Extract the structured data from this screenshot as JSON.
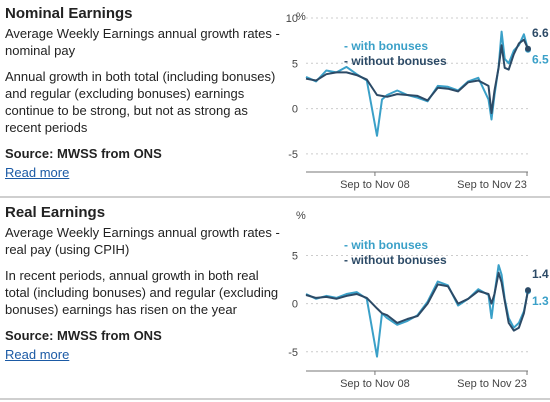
{
  "panels": [
    {
      "title": "Nominal Earnings",
      "subtitle": "Average Weekly Earnings annual growth rates - nominal pay",
      "description": "Annual growth in both total (including bonuses) and regular (excluding bonuses) earnings continue to be strong, but not as strong as recent periods",
      "source": "Source: MWSS from ONS",
      "link": "Read more"
    },
    {
      "title": "Real Earnings",
      "subtitle": "Average Weekly Earnings annual growth rates - real pay (using CPIH)",
      "description": "In recent periods, annual growth in both real total (including bonuses) and regular (excluding bonuses) earnings has risen on the year",
      "source": "Source: MWSS from ONS",
      "link": "Read more"
    }
  ],
  "colors": {
    "with_bonuses": "#3aa0c8",
    "without_bonuses": "#2c4a66",
    "axis": "#777777",
    "grid": "#cccccc",
    "text": "#444444"
  },
  "chart_data": [
    {
      "type": "line",
      "ylabel": "%",
      "ylim": [
        -7,
        10
      ],
      "yticks": [
        "-5",
        "0",
        "5",
        "10"
      ],
      "x_tick_labels": [
        "Sep to Nov 08",
        "Sep to Nov 23"
      ],
      "x": [
        "2002",
        "2003",
        "2004",
        "2005",
        "2006",
        "2007",
        "2008",
        "2009",
        "2009.5",
        "2010",
        "2011",
        "2012",
        "2013",
        "2014",
        "2015",
        "2016",
        "2017",
        "2018",
        "2019",
        "2020",
        "2020.3",
        "2020.6",
        "2021",
        "2021.3",
        "2021.6",
        "2022",
        "2022.5",
        "2023",
        "2023.5",
        "2023.9"
      ],
      "series": [
        {
          "name": "with bonuses",
          "end_label": "6.5",
          "values": [
            3.5,
            3.0,
            4.2,
            4.0,
            4.6,
            3.8,
            3.1,
            -3.0,
            1.0,
            1.5,
            2.0,
            1.5,
            1.2,
            0.8,
            2.5,
            2.4,
            2.0,
            3.0,
            3.4,
            1.0,
            -1.2,
            1.5,
            4.6,
            8.5,
            5.5,
            5.0,
            6.4,
            7.0,
            8.2,
            6.5
          ]
        },
        {
          "name": "without bonuses",
          "end_label": "6.6",
          "values": [
            3.3,
            3.1,
            3.8,
            4.0,
            4.0,
            3.7,
            3.2,
            1.5,
            1.4,
            1.3,
            1.6,
            1.5,
            1.4,
            0.9,
            2.3,
            2.2,
            1.9,
            2.9,
            3.1,
            2.5,
            -0.5,
            2.0,
            4.5,
            7.0,
            4.5,
            4.3,
            6.0,
            7.2,
            7.6,
            6.6
          ]
        }
      ]
    },
    {
      "type": "line",
      "ylabel": "%",
      "ylim": [
        -7,
        9
      ],
      "yticks": [
        "-5",
        "0",
        "5"
      ],
      "x_tick_labels": [
        "Sep to Nov 08",
        "Sep to Nov 23"
      ],
      "x": [
        "2002",
        "2003",
        "2004",
        "2005",
        "2006",
        "2007",
        "2008",
        "2009",
        "2009.5",
        "2010",
        "2011",
        "2012",
        "2013",
        "2014",
        "2015",
        "2016",
        "2017",
        "2018",
        "2019",
        "2020",
        "2020.3",
        "2020.6",
        "2021",
        "2021.3",
        "2021.6",
        "2022",
        "2022.5",
        "2023",
        "2023.5",
        "2023.9"
      ],
      "series": [
        {
          "name": "with bonuses",
          "end_label": "1.3",
          "values": [
            1.0,
            0.5,
            0.8,
            0.6,
            1.0,
            1.2,
            0.5,
            -5.5,
            -1.0,
            -1.5,
            -2.2,
            -1.8,
            -1.2,
            0.2,
            2.3,
            1.9,
            -0.2,
            0.5,
            1.5,
            0.9,
            -1.5,
            1.0,
            4.0,
            3.0,
            0.5,
            -1.5,
            -2.5,
            -2.0,
            -0.8,
            1.3
          ]
        },
        {
          "name": "without bonuses",
          "end_label": "1.4",
          "values": [
            0.9,
            0.6,
            0.7,
            0.5,
            0.8,
            1.0,
            0.6,
            -0.5,
            -1.0,
            -1.2,
            -2.0,
            -1.6,
            -1.3,
            0.0,
            2.0,
            1.8,
            0.0,
            0.5,
            1.3,
            1.0,
            0.0,
            1.0,
            3.2,
            2.2,
            0.3,
            -2.0,
            -2.8,
            -2.5,
            -1.0,
            1.4
          ]
        }
      ]
    }
  ]
}
